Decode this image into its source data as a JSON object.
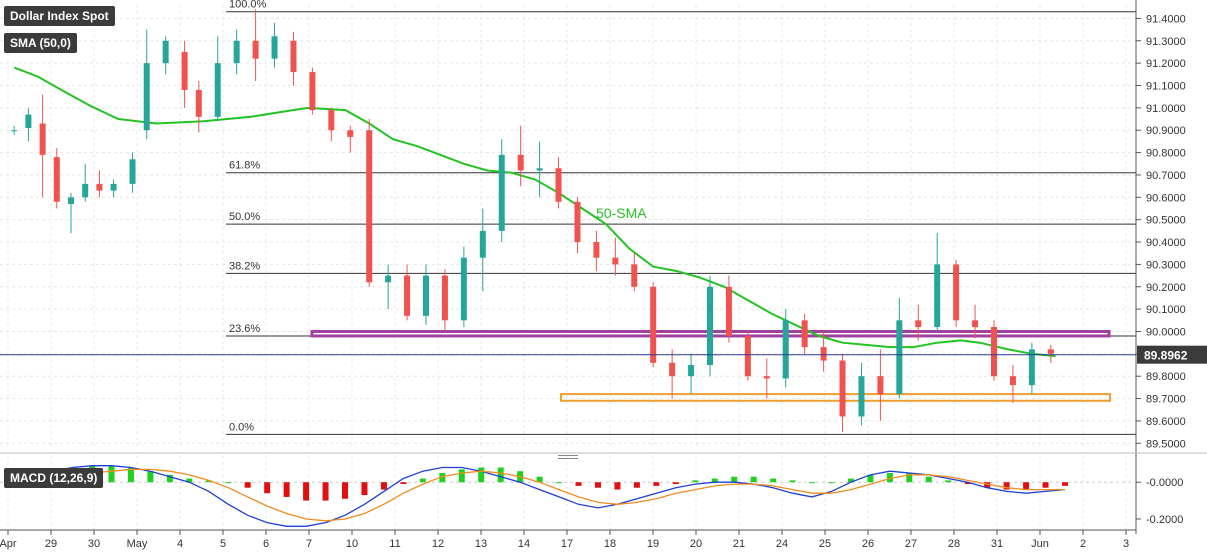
{
  "header": {
    "instrument_label": "Dollar Index Spot",
    "sma_label": "SMA (50,0)",
    "macd_label": "MACD (12,26,9)"
  },
  "colors": {
    "bull": "#26a69a",
    "bear": "#ef5350",
    "sma": "#22c322",
    "macd_line": "#1f3fd6",
    "signal_line": "#f28c1e",
    "hist_pos": "#20d020",
    "hist_neg": "#e01010",
    "support_zone": "#f0a030",
    "resistance_zone": "#a040a0",
    "price_tag": "#3b3b3b"
  },
  "chart_data": [
    {
      "type": "candlestick",
      "title": "Dollar Index Spot",
      "x_ticks": [
        "Apr",
        "29",
        "30",
        "May",
        "4",
        "5",
        "6",
        "7",
        "10",
        "11",
        "12",
        "13",
        "14",
        "17",
        "18",
        "19",
        "20",
        "21",
        "24",
        "25",
        "26",
        "27",
        "28",
        "31",
        "Jun",
        "2",
        "3"
      ],
      "y_ticks": [
        "91.4000",
        "91.3000",
        "91.2000",
        "91.1000",
        "91.0000",
        "90.9000",
        "90.8000",
        "90.7000",
        "90.6000",
        "90.5000",
        "90.4000",
        "90.3000",
        "90.2000",
        "90.1000",
        "90.0000",
        "89.9000",
        "89.8000",
        "89.7000",
        "89.6000",
        "89.5000"
      ],
      "ylim": [
        89.47,
        91.46
      ],
      "current_price": "89.8962",
      "fibonacci_levels": [
        {
          "label": "100.0%",
          "value": 91.43
        },
        {
          "label": "61.8%",
          "value": 90.71
        },
        {
          "label": "50.0%",
          "value": 90.48
        },
        {
          "label": "38.2%",
          "value": 90.26
        },
        {
          "label": "23.6%",
          "value": 89.98
        },
        {
          "label": "0.0%",
          "value": 89.54
        }
      ],
      "zones": [
        {
          "kind": "resistance",
          "low": 89.98,
          "high": 90.0
        },
        {
          "kind": "support",
          "low": 89.69,
          "high": 89.72
        }
      ],
      "annotations": [
        "50-SMA"
      ],
      "sma_series": {
        "name": "50-SMA",
        "points": [
          [
            0,
            91.18
          ],
          [
            0.5,
            91.14
          ],
          [
            1,
            91.08
          ],
          [
            1.6,
            91.01
          ],
          [
            2.2,
            90.95
          ],
          [
            3,
            90.93
          ],
          [
            4,
            90.94
          ],
          [
            5,
            90.96
          ],
          [
            5.6,
            90.98
          ],
          [
            6.2,
            91.0
          ],
          [
            7,
            90.99
          ],
          [
            7.5,
            90.93
          ],
          [
            8,
            90.86
          ],
          [
            8.5,
            90.83
          ],
          [
            9,
            90.79
          ],
          [
            9.5,
            90.75
          ],
          [
            10,
            90.72
          ],
          [
            10.5,
            90.71
          ],
          [
            11,
            90.68
          ],
          [
            11.5,
            90.62
          ],
          [
            12,
            90.55
          ],
          [
            12.5,
            90.48
          ],
          [
            13,
            90.37
          ],
          [
            13.5,
            90.29
          ],
          [
            14,
            90.27
          ],
          [
            14.5,
            90.24
          ],
          [
            15,
            90.2
          ],
          [
            15.5,
            90.14
          ],
          [
            16,
            90.08
          ],
          [
            16.5,
            90.03
          ],
          [
            17,
            89.98
          ],
          [
            17.5,
            89.95
          ],
          [
            18,
            89.94
          ],
          [
            18.5,
            89.93
          ],
          [
            19,
            89.93
          ],
          [
            19.5,
            89.95
          ],
          [
            20,
            89.96
          ],
          [
            20.4,
            89.95
          ],
          [
            21,
            89.92
          ],
          [
            21.5,
            89.9
          ],
          [
            22,
            89.89
          ]
        ]
      },
      "candles": [
        {
          "x": 0,
          "o": 90.9,
          "h": 90.92,
          "l": 90.88,
          "c": 90.9
        },
        {
          "x": 0.3,
          "o": 90.91,
          "h": 91.0,
          "l": 90.85,
          "c": 90.97
        },
        {
          "x": 0.6,
          "o": 90.93,
          "h": 91.06,
          "l": 90.6,
          "c": 90.79
        },
        {
          "x": 0.9,
          "o": 90.78,
          "h": 90.82,
          "l": 90.55,
          "c": 90.58
        },
        {
          "x": 1.2,
          "o": 90.57,
          "h": 90.62,
          "l": 90.44,
          "c": 90.6
        },
        {
          "x": 1.5,
          "o": 90.6,
          "h": 90.75,
          "l": 90.58,
          "c": 90.66
        },
        {
          "x": 1.8,
          "o": 90.66,
          "h": 90.72,
          "l": 90.6,
          "c": 90.63
        },
        {
          "x": 2.1,
          "o": 90.63,
          "h": 90.68,
          "l": 90.6,
          "c": 90.66
        },
        {
          "x": 2.5,
          "o": 90.66,
          "h": 90.8,
          "l": 90.62,
          "c": 90.77
        },
        {
          "x": 2.8,
          "o": 90.9,
          "h": 91.35,
          "l": 90.86,
          "c": 91.2
        },
        {
          "x": 3.2,
          "o": 91.2,
          "h": 91.32,
          "l": 91.15,
          "c": 91.3
        },
        {
          "x": 3.6,
          "o": 91.25,
          "h": 91.3,
          "l": 91.0,
          "c": 91.08
        },
        {
          "x": 3.9,
          "o": 91.08,
          "h": 91.12,
          "l": 90.89,
          "c": 90.96
        },
        {
          "x": 4.3,
          "o": 90.96,
          "h": 91.32,
          "l": 90.94,
          "c": 91.2
        },
        {
          "x": 4.7,
          "o": 91.2,
          "h": 91.35,
          "l": 91.15,
          "c": 91.3
        },
        {
          "x": 5.1,
          "o": 91.3,
          "h": 91.44,
          "l": 91.12,
          "c": 91.22
        },
        {
          "x": 5.5,
          "o": 91.22,
          "h": 91.38,
          "l": 91.18,
          "c": 91.32
        },
        {
          "x": 5.9,
          "o": 91.3,
          "h": 91.34,
          "l": 91.1,
          "c": 91.16
        },
        {
          "x": 6.3,
          "o": 91.16,
          "h": 91.18,
          "l": 90.97,
          "c": 90.99
        },
        {
          "x": 6.7,
          "o": 90.99,
          "h": 91.0,
          "l": 90.85,
          "c": 90.9
        },
        {
          "x": 7.1,
          "o": 90.9,
          "h": 90.92,
          "l": 90.8,
          "c": 90.87
        },
        {
          "x": 7.5,
          "o": 90.9,
          "h": 90.95,
          "l": 90.2,
          "c": 90.22
        },
        {
          "x": 7.9,
          "o": 90.22,
          "h": 90.3,
          "l": 90.1,
          "c": 90.25
        },
        {
          "x": 8.3,
          "o": 90.25,
          "h": 90.3,
          "l": 90.05,
          "c": 90.07
        },
        {
          "x": 8.7,
          "o": 90.07,
          "h": 90.3,
          "l": 90.03,
          "c": 90.25
        },
        {
          "x": 9.1,
          "o": 90.25,
          "h": 90.28,
          "l": 90.0,
          "c": 90.05
        },
        {
          "x": 9.5,
          "o": 90.05,
          "h": 90.38,
          "l": 90.02,
          "c": 90.33
        },
        {
          "x": 9.9,
          "o": 90.33,
          "h": 90.55,
          "l": 90.18,
          "c": 90.45
        },
        {
          "x": 10.3,
          "o": 90.45,
          "h": 90.86,
          "l": 90.4,
          "c": 90.79
        },
        {
          "x": 10.7,
          "o": 90.79,
          "h": 90.92,
          "l": 90.65,
          "c": 90.72
        },
        {
          "x": 11.1,
          "o": 90.72,
          "h": 90.85,
          "l": 90.6,
          "c": 90.73
        },
        {
          "x": 11.5,
          "o": 90.73,
          "h": 90.78,
          "l": 90.55,
          "c": 90.58
        },
        {
          "x": 11.9,
          "o": 90.58,
          "h": 90.6,
          "l": 90.35,
          "c": 90.4
        },
        {
          "x": 12.3,
          "o": 90.4,
          "h": 90.45,
          "l": 90.27,
          "c": 90.33
        },
        {
          "x": 12.7,
          "o": 90.33,
          "h": 90.42,
          "l": 90.25,
          "c": 90.3
        },
        {
          "x": 13.1,
          "o": 90.3,
          "h": 90.35,
          "l": 90.18,
          "c": 90.2
        },
        {
          "x": 13.5,
          "o": 90.2,
          "h": 90.22,
          "l": 89.84,
          "c": 89.86
        },
        {
          "x": 13.9,
          "o": 89.86,
          "h": 89.92,
          "l": 89.7,
          "c": 89.8
        },
        {
          "x": 14.3,
          "o": 89.8,
          "h": 89.9,
          "l": 89.72,
          "c": 89.85
        },
        {
          "x": 14.7,
          "o": 89.85,
          "h": 90.25,
          "l": 89.8,
          "c": 90.2
        },
        {
          "x": 15.1,
          "o": 90.2,
          "h": 90.25,
          "l": 89.95,
          "c": 89.98
        },
        {
          "x": 15.5,
          "o": 89.98,
          "h": 90.0,
          "l": 89.78,
          "c": 89.8
        },
        {
          "x": 15.9,
          "o": 89.8,
          "h": 89.88,
          "l": 89.7,
          "c": 89.79
        },
        {
          "x": 16.3,
          "o": 89.79,
          "h": 90.1,
          "l": 89.75,
          "c": 90.05
        },
        {
          "x": 16.7,
          "o": 90.05,
          "h": 90.08,
          "l": 89.9,
          "c": 89.93
        },
        {
          "x": 17.1,
          "o": 89.93,
          "h": 90.0,
          "l": 89.82,
          "c": 89.87
        },
        {
          "x": 17.5,
          "o": 89.87,
          "h": 89.9,
          "l": 89.55,
          "c": 89.62
        },
        {
          "x": 17.9,
          "o": 89.62,
          "h": 89.86,
          "l": 89.58,
          "c": 89.8
        },
        {
          "x": 18.3,
          "o": 89.8,
          "h": 89.92,
          "l": 89.6,
          "c": 89.72
        },
        {
          "x": 18.7,
          "o": 89.72,
          "h": 90.15,
          "l": 89.7,
          "c": 90.05
        },
        {
          "x": 19.1,
          "o": 90.05,
          "h": 90.12,
          "l": 89.96,
          "c": 90.02
        },
        {
          "x": 19.5,
          "o": 90.02,
          "h": 90.44,
          "l": 90.0,
          "c": 90.3
        },
        {
          "x": 19.9,
          "o": 90.3,
          "h": 90.32,
          "l": 90.02,
          "c": 90.05
        },
        {
          "x": 20.3,
          "o": 90.05,
          "h": 90.12,
          "l": 89.97,
          "c": 90.02
        },
        {
          "x": 20.7,
          "o": 90.02,
          "h": 90.05,
          "l": 89.78,
          "c": 89.8
        },
        {
          "x": 21.1,
          "o": 89.8,
          "h": 89.85,
          "l": 89.68,
          "c": 89.76
        },
        {
          "x": 21.5,
          "o": 89.76,
          "h": 89.95,
          "l": 89.72,
          "c": 89.92
        },
        {
          "x": 21.9,
          "o": 89.92,
          "h": 89.94,
          "l": 89.86,
          "c": 89.9
        }
      ]
    },
    {
      "type": "bar",
      "title": "MACD (12,26,9)",
      "y_ticks": [
        "-0.0000",
        "-0.2000"
      ],
      "ylim": [
        -0.26,
        0.11
      ],
      "histogram": [
        0.05,
        0.06,
        0.07,
        0.08,
        0.09,
        0.09,
        0.08,
        0.06,
        0.04,
        0.02,
        0.01,
        0.0,
        -0.03,
        -0.06,
        -0.08,
        -0.1,
        -0.1,
        -0.09,
        -0.07,
        -0.04,
        -0.01,
        0.02,
        0.05,
        0.07,
        0.08,
        0.08,
        0.06,
        0.03,
        0.0,
        -0.02,
        -0.03,
        -0.04,
        -0.03,
        -0.02,
        -0.01,
        0.01,
        0.02,
        0.03,
        0.03,
        0.02,
        0.01,
        0.0,
        0.0,
        0.02,
        0.04,
        0.05,
        0.05,
        0.03,
        0.01,
        -0.01,
        -0.03,
        -0.04,
        -0.04,
        -0.03,
        -0.02
      ],
      "series": [
        {
          "name": "",
          "values": [
            0.02,
            0.04,
            0.06,
            0.08,
            0.09,
            0.09,
            0.08,
            0.06,
            0.03,
            0.0,
            -0.05,
            -0.12,
            -0.18,
            -0.22,
            -0.24,
            -0.24,
            -0.22,
            -0.18,
            -0.12,
            -0.05,
            0.02,
            0.06,
            0.08,
            0.08,
            0.06,
            0.03,
            0.0,
            -0.04,
            -0.08,
            -0.12,
            -0.14,
            -0.12,
            -0.09,
            -0.06,
            -0.03,
            -0.01,
            0.0,
            0.0,
            -0.01,
            -0.03,
            -0.06,
            -0.08,
            -0.05,
            0.0,
            0.04,
            0.06,
            0.05,
            0.04,
            0.02,
            0.0,
            -0.03,
            -0.05,
            -0.06,
            -0.05,
            -0.04
          ]
        },
        {
          "name": "",
          "values": [
            -0.02,
            -0.01,
            0.01,
            0.03,
            0.05,
            0.06,
            0.07,
            0.07,
            0.06,
            0.04,
            0.01,
            -0.03,
            -0.08,
            -0.13,
            -0.17,
            -0.2,
            -0.21,
            -0.2,
            -0.17,
            -0.12,
            -0.06,
            -0.01,
            0.03,
            0.05,
            0.06,
            0.05,
            0.03,
            0.0,
            -0.04,
            -0.08,
            -0.11,
            -0.12,
            -0.11,
            -0.09,
            -0.06,
            -0.04,
            -0.02,
            -0.01,
            -0.01,
            -0.02,
            -0.04,
            -0.06,
            -0.06,
            -0.04,
            -0.01,
            0.02,
            0.04,
            0.04,
            0.03,
            0.01,
            -0.01,
            -0.03,
            -0.04,
            -0.04,
            -0.04
          ]
        }
      ]
    }
  ]
}
